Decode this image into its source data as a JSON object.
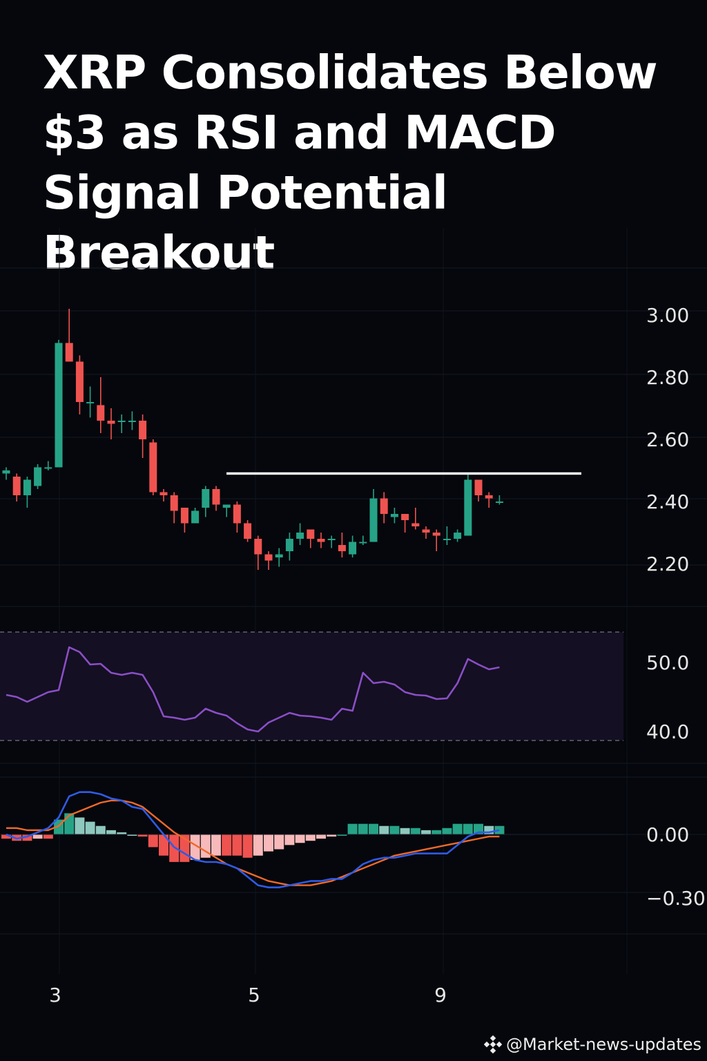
{
  "headline": {
    "line1": "XRP Consolidates Below",
    "line2": "$3 as RSI and MACD",
    "line3": "Signal Potential Breakout"
  },
  "watermark": {
    "text": "@Market-news-updates",
    "icon": "binance-diamond-icon"
  },
  "colors": {
    "up": "#26a387",
    "down": "#ef5350",
    "rsi": "#8a4fc7",
    "rsi_band": "#140f22",
    "macd": "#2f5be6",
    "signal": "#f0692a",
    "hist_pos_strong": "#26a387",
    "hist_pos_weak": "#8ec7bd",
    "hist_neg_strong": "#ef5350",
    "hist_neg_weak": "#f7b9b9"
  },
  "chart_data": [
    {
      "type": "candlestick",
      "title": "",
      "x_ticks": [
        "3",
        "5",
        "9"
      ],
      "y_ticks": [
        "3.00",
        "2.80",
        "2.60",
        "2.40",
        "2.20"
      ],
      "ylim": [
        2.05,
        3.15
      ],
      "resistance_level": 2.49,
      "grid": true,
      "candles": [
        [
          2.49,
          2.5,
          2.47,
          2.51
        ],
        [
          2.48,
          2.42,
          2.4,
          2.49
        ],
        [
          2.42,
          2.47,
          2.38,
          2.48
        ],
        [
          2.45,
          2.51,
          2.44,
          2.52
        ],
        [
          2.51,
          2.51,
          2.5,
          2.53
        ],
        [
          2.51,
          2.91,
          2.51,
          2.92
        ],
        [
          2.91,
          2.85,
          2.85,
          3.02
        ],
        [
          2.85,
          2.72,
          2.68,
          2.87
        ],
        [
          2.72,
          2.72,
          2.67,
          2.77
        ],
        [
          2.71,
          2.66,
          2.62,
          2.8
        ],
        [
          2.66,
          2.65,
          2.6,
          2.7
        ],
        [
          2.66,
          2.66,
          2.62,
          2.68
        ],
        [
          2.66,
          2.66,
          2.63,
          2.69
        ],
        [
          2.66,
          2.6,
          2.54,
          2.68
        ],
        [
          2.59,
          2.43,
          2.42,
          2.6
        ],
        [
          2.43,
          2.42,
          2.4,
          2.44
        ],
        [
          2.42,
          2.37,
          2.33,
          2.43
        ],
        [
          2.38,
          2.33,
          2.3,
          2.38
        ],
        [
          2.33,
          2.37,
          2.33,
          2.38
        ],
        [
          2.38,
          2.44,
          2.35,
          2.45
        ],
        [
          2.44,
          2.39,
          2.37,
          2.45
        ],
        [
          2.38,
          2.39,
          2.35,
          2.39
        ],
        [
          2.39,
          2.33,
          2.3,
          2.4
        ],
        [
          2.33,
          2.28,
          2.27,
          2.34
        ],
        [
          2.28,
          2.23,
          2.18,
          2.29
        ],
        [
          2.23,
          2.21,
          2.18,
          2.24
        ],
        [
          2.22,
          2.23,
          2.19,
          2.25
        ],
        [
          2.24,
          2.28,
          2.21,
          2.3
        ],
        [
          2.28,
          2.3,
          2.26,
          2.33
        ],
        [
          2.31,
          2.28,
          2.25,
          2.31
        ],
        [
          2.28,
          2.27,
          2.25,
          2.3
        ],
        [
          2.28,
          2.28,
          2.25,
          2.29
        ],
        [
          2.26,
          2.24,
          2.22,
          2.3
        ],
        [
          2.23,
          2.27,
          2.22,
          2.29
        ],
        [
          2.27,
          2.27,
          2.26,
          2.29
        ],
        [
          2.27,
          2.41,
          2.27,
          2.44
        ],
        [
          2.41,
          2.36,
          2.33,
          2.43
        ],
        [
          2.35,
          2.36,
          2.33,
          2.38
        ],
        [
          2.36,
          2.34,
          2.3,
          2.36
        ],
        [
          2.33,
          2.32,
          2.31,
          2.38
        ],
        [
          2.31,
          2.3,
          2.28,
          2.32
        ],
        [
          2.3,
          2.29,
          2.24,
          2.31
        ],
        [
          2.28,
          2.28,
          2.26,
          2.32
        ],
        [
          2.28,
          2.3,
          2.27,
          2.31
        ],
        [
          2.29,
          2.47,
          2.29,
          2.49
        ],
        [
          2.47,
          2.42,
          2.4,
          2.47
        ],
        [
          2.42,
          2.41,
          2.38,
          2.43
        ],
        [
          2.4,
          2.4,
          2.39,
          2.42
        ]
      ]
    },
    {
      "type": "line",
      "name": "RSI",
      "y_ticks": [
        "50.0",
        "40.0"
      ],
      "ylim": [
        39,
        51
      ],
      "band": [
        38,
        52
      ],
      "values": [
        45.3,
        45.0,
        44.3,
        45.0,
        45.7,
        46.0,
        52.2,
        51.5,
        49.7,
        49.8,
        48.5,
        48.2,
        48.5,
        48.2,
        45.7,
        42.2,
        42.0,
        41.7,
        42.0,
        43.3,
        42.7,
        42.3,
        41.2,
        40.3,
        40.0,
        41.3,
        42.0,
        42.7,
        42.3,
        42.2,
        42.0,
        41.7,
        43.3,
        43.0,
        48.5,
        47.0,
        47.2,
        46.8,
        45.7,
        45.3,
        45.2,
        44.7,
        44.8,
        47.0,
        50.5,
        49.7,
        49.0,
        49.3
      ]
    },
    {
      "type": "line+bar",
      "name": "MACD",
      "y_ticks": [
        "0.00",
        "−0.30"
      ],
      "ylim": [
        -0.34,
        0.28
      ],
      "series_macd": [
        0.0,
        -0.02,
        -0.01,
        0.01,
        0.03,
        0.08,
        0.18,
        0.2,
        0.2,
        0.19,
        0.17,
        0.16,
        0.13,
        0.12,
        0.06,
        0.0,
        -0.06,
        -0.09,
        -0.12,
        -0.13,
        -0.13,
        -0.14,
        -0.16,
        -0.2,
        -0.24,
        -0.25,
        -0.25,
        -0.24,
        -0.23,
        -0.22,
        -0.22,
        -0.21,
        -0.21,
        -0.18,
        -0.14,
        -0.12,
        -0.11,
        -0.11,
        -0.1,
        -0.09,
        -0.09,
        -0.09,
        -0.09,
        -0.05,
        -0.01,
        0.01,
        0.01,
        0.02
      ],
      "series_signal": [
        0.03,
        0.03,
        0.02,
        0.02,
        0.02,
        0.04,
        0.09,
        0.11,
        0.13,
        0.15,
        0.16,
        0.16,
        0.15,
        0.13,
        0.09,
        0.05,
        0.01,
        -0.02,
        -0.05,
        -0.08,
        -0.11,
        -0.14,
        -0.16,
        -0.18,
        -0.2,
        -0.22,
        -0.23,
        -0.24,
        -0.24,
        -0.24,
        -0.23,
        -0.22,
        -0.2,
        -0.18,
        -0.16,
        -0.14,
        -0.12,
        -0.1,
        -0.09,
        -0.08,
        -0.07,
        -0.06,
        -0.05,
        -0.04,
        -0.03,
        -0.02,
        -0.01,
        -0.01
      ],
      "histogram": [
        -0.02,
        -0.03,
        -0.03,
        -0.02,
        -0.02,
        0.07,
        0.1,
        0.08,
        0.06,
        0.04,
        0.02,
        0.01,
        0.0,
        -0.01,
        -0.06,
        -0.1,
        -0.13,
        -0.13,
        -0.12,
        -0.11,
        -0.1,
        -0.1,
        -0.1,
        -0.11,
        -0.1,
        -0.08,
        -0.07,
        -0.05,
        -0.04,
        -0.03,
        -0.02,
        -0.01,
        0.0,
        0.05,
        0.05,
        0.05,
        0.04,
        0.04,
        0.03,
        0.03,
        0.02,
        0.02,
        0.03,
        0.05,
        0.05,
        0.05,
        0.04,
        0.04
      ]
    }
  ]
}
